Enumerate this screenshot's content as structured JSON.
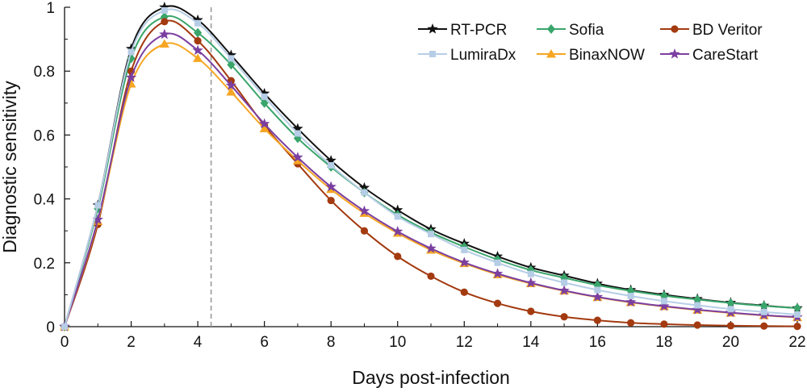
{
  "chart_data": {
    "type": "line",
    "title": "",
    "xlabel": "Days post-infection",
    "ylabel": "Diagnostic sensitivity",
    "xlim": [
      0,
      22
    ],
    "ylim": [
      0,
      1
    ],
    "x_ticks": [
      "0",
      "2",
      "4",
      "6",
      "8",
      "10",
      "12",
      "14",
      "16",
      "18",
      "20",
      "22"
    ],
    "y_ticks": [
      "0",
      "0.2",
      "0.4",
      "0.6",
      "0.8",
      "1"
    ],
    "reference_line_x": 4.4,
    "grid": false,
    "legend_position": "top-right",
    "x": [
      0,
      1,
      2,
      3,
      4,
      5,
      6,
      7,
      8,
      9,
      10,
      11,
      12,
      13,
      14,
      15,
      16,
      17,
      18,
      19,
      20,
      21,
      22
    ],
    "series": [
      {
        "name": "RT-PCR",
        "color": "#111111",
        "marker": "star",
        "values": [
          0,
          0.38,
          0.87,
          1.0,
          0.96,
          0.85,
          0.73,
          0.62,
          0.52,
          0.435,
          0.365,
          0.305,
          0.26,
          0.22,
          0.185,
          0.16,
          0.135,
          0.115,
          0.1,
          0.087,
          0.075,
          0.066,
          0.058
        ]
      },
      {
        "name": "Sofia",
        "color": "#3aa56b",
        "marker": "diamond",
        "values": [
          0,
          0.37,
          0.84,
          0.97,
          0.92,
          0.82,
          0.7,
          0.59,
          0.5,
          0.42,
          0.35,
          0.295,
          0.25,
          0.21,
          0.177,
          0.153,
          0.13,
          0.112,
          0.097,
          0.085,
          0.074,
          0.065,
          0.058
        ]
      },
      {
        "name": "BD Veritor",
        "color": "#a33a10",
        "marker": "circle",
        "values": [
          0,
          0.32,
          0.8,
          0.955,
          0.895,
          0.77,
          0.63,
          0.51,
          0.395,
          0.3,
          0.22,
          0.158,
          0.108,
          0.073,
          0.048,
          0.031,
          0.02,
          0.012,
          0.008,
          0.005,
          0.003,
          0.002,
          0.001
        ]
      },
      {
        "name": "LumiraDx",
        "color": "#b6cde6",
        "marker": "square",
        "values": [
          0,
          0.38,
          0.86,
          0.99,
          0.95,
          0.84,
          0.72,
          0.605,
          0.505,
          0.42,
          0.345,
          0.29,
          0.24,
          0.2,
          0.165,
          0.138,
          0.115,
          0.096,
          0.08,
          0.067,
          0.055,
          0.046,
          0.038
        ]
      },
      {
        "name": "BinaxNOW",
        "color": "#f6a623",
        "marker": "triangle",
        "values": [
          0,
          0.33,
          0.76,
          0.885,
          0.84,
          0.735,
          0.62,
          0.52,
          0.43,
          0.355,
          0.293,
          0.24,
          0.198,
          0.163,
          0.135,
          0.112,
          0.092,
          0.076,
          0.063,
          0.052,
          0.043,
          0.035,
          0.029
        ]
      },
      {
        "name": "CareStart",
        "color": "#7b3fa0",
        "marker": "star",
        "values": [
          0,
          0.335,
          0.78,
          0.915,
          0.865,
          0.755,
          0.635,
          0.53,
          0.438,
          0.362,
          0.298,
          0.245,
          0.201,
          0.166,
          0.137,
          0.113,
          0.093,
          0.077,
          0.064,
          0.053,
          0.044,
          0.036,
          0.03
        ]
      }
    ]
  }
}
